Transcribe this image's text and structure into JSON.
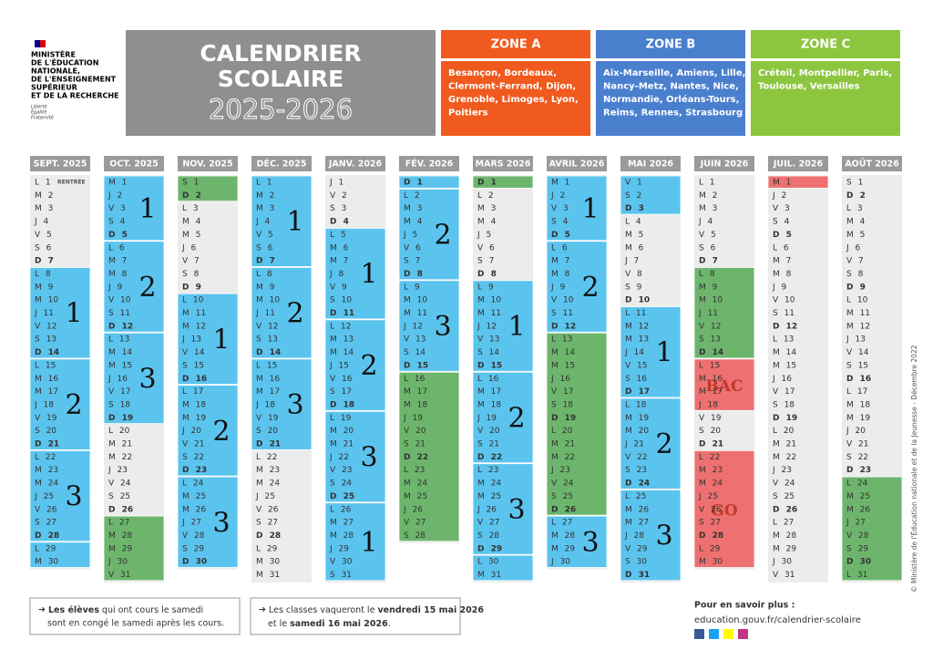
{
  "header": {
    "org": [
      "Ministère",
      "de l'Éducation",
      "nationale,",
      "de l'Enseignement",
      "supérieur",
      "et de la Recherche"
    ],
    "motto": [
      "Liberté",
      "Égalité",
      "Fraternité"
    ],
    "title": [
      "CALENDRIER",
      "SCOLAIRE"
    ],
    "years": "2025-2026"
  },
  "zones": [
    {
      "name": "ZONE A",
      "color": "#f05a1e",
      "cities": [
        "Besançon, Bordeaux,",
        "Clermont-Ferrand, Dijon,",
        "Grenoble, Limoges, Lyon,",
        "Poitiers"
      ]
    },
    {
      "name": "ZONE B",
      "color": "#4a7fce",
      "cities": [
        "Aix-Marseille, Amiens, Lille,",
        "Nancy-Metz, Nantes, Nice,",
        "Normandie, Orléans-Tours,",
        "Reims, Rennes, Strasbourg"
      ]
    },
    {
      "name": "ZONE C",
      "color": "#8cc63f",
      "cities": [
        "Créteil, Montpellier, Paris,",
        "Toulouse, Versailles"
      ]
    }
  ],
  "months": [
    {
      "name": "SEPT. 2025",
      "note": "RENTRÉE",
      "days": [
        "L 1",
        "M 2",
        "M 3",
        "J 4",
        "V 5",
        "S 6",
        "D 7",
        "L 8",
        "M 9",
        "M 10",
        "J 11",
        "V 12",
        "S 13",
        "D 14",
        "L 15",
        "M 16",
        "M 17",
        "J 18",
        "V 19",
        "S 20",
        "D 21",
        "L 22",
        "M 23",
        "M 24",
        "J 25",
        "V 26",
        "S 27",
        "D 28",
        "L 29",
        "M 30"
      ],
      "blocks": [
        {
          "first": 8,
          "last": 14,
          "color": "#5bc4ee",
          "label": "1"
        },
        {
          "first": 15,
          "last": 21,
          "color": "#5bc4ee",
          "label": "2"
        },
        {
          "first": 22,
          "last": 28,
          "color": "#5bc4ee",
          "label": "3"
        },
        {
          "first": 29,
          "last": 30,
          "color": "#5bc4ee"
        }
      ]
    },
    {
      "name": "OCT. 2025",
      "days": [
        "M 1",
        "J 2",
        "V 3",
        "S 4",
        "D 5",
        "L 6",
        "M 7",
        "M 8",
        "J 9",
        "V 10",
        "S 11",
        "D 12",
        "L 13",
        "M 14",
        "M 15",
        "J 16",
        "V 17",
        "S 18",
        "D 19",
        "L 20",
        "M 21",
        "M 22",
        "J 23",
        "V 24",
        "S 25",
        "D 26",
        "L 27",
        "M 28",
        "M 29",
        "J 30",
        "V 31"
      ],
      "blocks": [
        {
          "first": 1,
          "last": 5,
          "color": "#5bc4ee",
          "label": "1"
        },
        {
          "first": 6,
          "last": 12,
          "color": "#5bc4ee",
          "label": "2"
        },
        {
          "first": 13,
          "last": 19,
          "color": "#5bc4ee",
          "label": "3"
        },
        {
          "first": 27,
          "last": 31,
          "color": "#6db56d"
        }
      ]
    },
    {
      "name": "NOV. 2025",
      "days": [
        "S 1",
        "D 2",
        "L 3",
        "M 4",
        "M 5",
        "J 6",
        "V 7",
        "S 8",
        "D 9",
        "L 10",
        "M 11",
        "M 12",
        "J 13",
        "V 14",
        "S 15",
        "D 16",
        "L 17",
        "M 18",
        "M 19",
        "J 20",
        "V 21",
        "S 22",
        "D 23",
        "L 24",
        "M 25",
        "M 26",
        "J 27",
        "V 28",
        "S 29",
        "D 30"
      ],
      "blocks": [
        {
          "first": 1,
          "last": 2,
          "color": "#6db56d"
        },
        {
          "first": 10,
          "last": 16,
          "color": "#5bc4ee",
          "label": "1"
        },
        {
          "first": 17,
          "last": 23,
          "color": "#5bc4ee",
          "label": "2"
        },
        {
          "first": 24,
          "last": 30,
          "color": "#5bc4ee",
          "label": "3"
        }
      ]
    },
    {
      "name": "DÉC. 2025",
      "days": [
        "L 1",
        "M 2",
        "M 3",
        "J 4",
        "V 5",
        "S 6",
        "D 7",
        "L 8",
        "M 9",
        "M 10",
        "J 11",
        "V 12",
        "S 13",
        "D 14",
        "L 15",
        "M 16",
        "M 17",
        "J 18",
        "V 19",
        "S 20",
        "D 21",
        "L 22",
        "M 23",
        "M 24",
        "J 25",
        "V 26",
        "S 27",
        "D 28",
        "L 29",
        "M 30",
        "M 31"
      ],
      "blocks": [
        {
          "first": 1,
          "last": 7,
          "color": "#5bc4ee",
          "label": "1"
        },
        {
          "first": 8,
          "last": 14,
          "color": "#5bc4ee",
          "label": "2"
        },
        {
          "first": 15,
          "last": 21,
          "color": "#5bc4ee",
          "label": "3"
        }
      ]
    },
    {
      "name": "JANV. 2026",
      "days": [
        "J 1",
        "V 2",
        "S 3",
        "D 4",
        "L 5",
        "M 6",
        "M 7",
        "J 8",
        "V 9",
        "S 10",
        "D 11",
        "L 12",
        "M 13",
        "M 14",
        "J 15",
        "V 16",
        "S 17",
        "D 18",
        "L 19",
        "M 20",
        "M 21",
        "J 22",
        "V 23",
        "S 24",
        "D 25",
        "L 26",
        "M 27",
        "M 28",
        "J 29",
        "V 30",
        "S 31"
      ],
      "blocks": [
        {
          "first": 5,
          "last": 11,
          "color": "#5bc4ee",
          "label": "1"
        },
        {
          "first": 12,
          "last": 18,
          "color": "#5bc4ee",
          "label": "2"
        },
        {
          "first": 19,
          "last": 25,
          "color": "#5bc4ee",
          "label": "3"
        },
        {
          "first": 26,
          "last": 31,
          "color": "#5bc4ee",
          "label": "1"
        }
      ]
    },
    {
      "name": "FÉV. 2026",
      "days": [
        "D 1",
        "L 2",
        "M 3",
        "M 4",
        "J 5",
        "V 6",
        "S 7",
        "D 8",
        "L 9",
        "M 10",
        "M 11",
        "J 12",
        "V 13",
        "S 14",
        "D 15",
        "L 16",
        "M 17",
        "M 18",
        "J 19",
        "V 20",
        "S 21",
        "D 22",
        "L 23",
        "M 24",
        "M 25",
        "J 26",
        "V 27",
        "S 28"
      ],
      "blocks": [
        {
          "first": 1,
          "last": 1,
          "color": "#5bc4ee"
        },
        {
          "first": 2,
          "last": 8,
          "color": "#5bc4ee",
          "label": "2"
        },
        {
          "first": 9,
          "last": 15,
          "color": "#5bc4ee",
          "label": "3"
        },
        {
          "first": 16,
          "last": 28,
          "color": "#6db56d"
        }
      ]
    },
    {
      "name": "MARS 2026",
      "days": [
        "D 1",
        "L 2",
        "M 3",
        "M 4",
        "J 5",
        "V 6",
        "S 7",
        "D 8",
        "L 9",
        "M 10",
        "M 11",
        "J 12",
        "V 13",
        "S 14",
        "D 15",
        "L 16",
        "M 17",
        "M 18",
        "J 19",
        "V 20",
        "S 21",
        "D 22",
        "L 23",
        "M 24",
        "M 25",
        "J 26",
        "V 27",
        "S 28",
        "D 29",
        "L 30",
        "M 31"
      ],
      "blocks": [
        {
          "first": 1,
          "last": 1,
          "color": "#6db56d"
        },
        {
          "first": 9,
          "last": 15,
          "color": "#5bc4ee",
          "label": "1"
        },
        {
          "first": 16,
          "last": 22,
          "color": "#5bc4ee",
          "label": "2"
        },
        {
          "first": 23,
          "last": 29,
          "color": "#5bc4ee",
          "label": "3"
        },
        {
          "first": 30,
          "last": 31,
          "color": "#5bc4ee"
        }
      ]
    },
    {
      "name": "AVRIL 2026",
      "days": [
        "M 1",
        "J 2",
        "V 3",
        "S 4",
        "D 5",
        "L 6",
        "M 7",
        "M 8",
        "J 9",
        "V 10",
        "S 11",
        "D 12",
        "L 13",
        "M 14",
        "M 15",
        "J 16",
        "V 17",
        "S 18",
        "D 19",
        "L 20",
        "M 21",
        "M 22",
        "J 23",
        "V 24",
        "S 25",
        "D 26",
        "L 27",
        "M 28",
        "M 29",
        "J 30"
      ],
      "blocks": [
        {
          "first": 1,
          "last": 5,
          "color": "#5bc4ee",
          "label": "1"
        },
        {
          "first": 6,
          "last": 12,
          "color": "#5bc4ee",
          "label": "2"
        },
        {
          "first": 13,
          "last": 26,
          "color": "#6db56d"
        },
        {
          "first": 27,
          "last": 30,
          "color": "#5bc4ee",
          "label": "3"
        }
      ]
    },
    {
      "name": "MAI 2026",
      "days": [
        "V 1",
        "S 2",
        "D 3",
        "L 4",
        "M 5",
        "M 6",
        "J 7",
        "V 8",
        "S 9",
        "D 10",
        "L 11",
        "M 12",
        "M 13",
        "J 14",
        "V 15",
        "S 16",
        "D 17",
        "L 18",
        "M 19",
        "M 20",
        "J 21",
        "V 22",
        "S 23",
        "D 24",
        "L 25",
        "M 26",
        "M 27",
        "J 28",
        "V 29",
        "S 30",
        "D 31"
      ],
      "blocks": [
        {
          "first": 1,
          "last": 3,
          "color": "#5bc4ee"
        },
        {
          "first": 11,
          "last": 17,
          "color": "#5bc4ee",
          "label": "1"
        },
        {
          "first": 18,
          "last": 24,
          "color": "#5bc4ee",
          "label": "2"
        },
        {
          "first": 25,
          "last": 31,
          "color": "#5bc4ee",
          "label": "3"
        }
      ]
    },
    {
      "name": "JUIN 2026",
      "days": [
        "L 1",
        "M 2",
        "M 3",
        "J 4",
        "V 5",
        "S 6",
        "D 7",
        "L 8",
        "M 9",
        "M 10",
        "J 11",
        "V 12",
        "S 13",
        "D 14",
        "L 15",
        "M 16",
        "M 17",
        "J 18",
        "V 19",
        "S 20",
        "D 21",
        "L 22",
        "M 23",
        "M 24",
        "J 25",
        "V 26",
        "S 27",
        "D 28",
        "L 29",
        "M 30"
      ],
      "blocks": [
        {
          "first": 8,
          "last": 14,
          "color": "#6db56d"
        },
        {
          "first": 15,
          "last": 18,
          "color": "#ee7070",
          "label": "BAC"
        },
        {
          "first": 22,
          "last": 30,
          "color": "#ee7070",
          "label": "GO"
        }
      ]
    },
    {
      "name": "JUIL. 2026",
      "days": [
        "M 1",
        "J 2",
        "V 3",
        "S 4",
        "D 5",
        "L 6",
        "M 7",
        "M 8",
        "J 9",
        "V 10",
        "S 11",
        "D 12",
        "L 13",
        "M 14",
        "M 15",
        "J 16",
        "V 17",
        "S 18",
        "D 19",
        "L 20",
        "M 21",
        "M 22",
        "J 23",
        "V 24",
        "S 25",
        "D 26",
        "L 27",
        "M 28",
        "M 29",
        "J 30",
        "V 31"
      ],
      "blocks": [
        {
          "first": 1,
          "last": 1,
          "color": "#ee7070"
        }
      ]
    },
    {
      "name": "AOÛT 2026",
      "days": [
        "S 1",
        "D 2",
        "L 3",
        "M 4",
        "M 5",
        "J 6",
        "V 7",
        "S 8",
        "D 9",
        "L 10",
        "M 11",
        "M 12",
        "J 13",
        "V 14",
        "S 15",
        "D 16",
        "L 17",
        "M 18",
        "M 19",
        "J 20",
        "V 21",
        "S 22",
        "D 23",
        "L 24",
        "M 25",
        "M 26",
        "J 27",
        "V 28",
        "S 29",
        "D 30",
        "L 31"
      ],
      "blocks": [
        {
          "first": 24,
          "last": 31,
          "color": "#6db56d"
        }
      ]
    }
  ],
  "footer": {
    "note1": {
      "bold": "Les élèves",
      "text": " qui ont cours le samedi",
      "line2": "sont en congé le samedi après les cours."
    },
    "note2": {
      "a": "Les classes vaqueront le ",
      "b": "vendredi 15 mai 2026",
      "line2a": "et le ",
      "c": "samedi 16 mai 2026",
      "d": "."
    },
    "more": "Pour en savoir plus :",
    "link": "education.gouv.fr/calendrier-scolaire",
    "copyright": "© Ministère de l'Éducation nationale et de la Jeunesse - Décembre 2022"
  }
}
